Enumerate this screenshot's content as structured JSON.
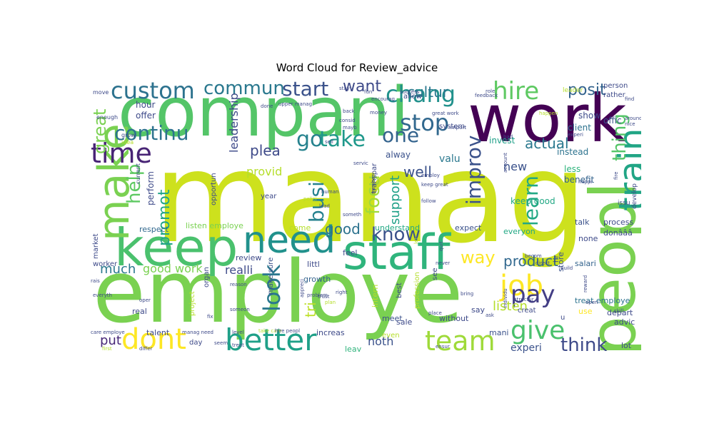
{
  "title": "Word Cloud for Review_advice",
  "words": [
    {
      "text": "manag",
      "color": "#cde11d"
    },
    {
      "text": "employe",
      "color": "#7ad151"
    },
    {
      "text": "compani",
      "color": "#54c568"
    },
    {
      "text": "work",
      "color": "#440154"
    },
    {
      "text": "peopl",
      "color": "#7ad151"
    },
    {
      "text": "keep",
      "color": "#4ac16d"
    },
    {
      "text": "staff",
      "color": "#2fb47c"
    },
    {
      "text": "need",
      "color": "#21918c"
    },
    {
      "text": "train",
      "color": "#21a585"
    },
    {
      "text": "better",
      "color": "#1fa088"
    },
    {
      "text": "dont",
      "color": "#fde725"
    },
    {
      "text": "team",
      "color": "#9fda3a"
    },
    {
      "text": "make",
      "color": "#7ad151"
    },
    {
      "text": "time",
      "color": "#482475"
    },
    {
      "text": "job",
      "color": "#fde725"
    },
    {
      "text": "give",
      "color": "#4ac16d"
    },
    {
      "text": "pay",
      "color": "#433e85"
    },
    {
      "text": "look",
      "color": "#2a788e"
    },
    {
      "text": "chang",
      "color": "#21918c"
    },
    {
      "text": "hire",
      "color": "#5ec962"
    },
    {
      "text": "custom",
      "color": "#2c728e"
    },
    {
      "text": "stop",
      "color": "#31688e"
    },
    {
      "text": "go",
      "color": "#26828e"
    },
    {
      "text": "take",
      "color": "#1f988b"
    },
    {
      "text": "one",
      "color": "#33638d"
    },
    {
      "text": "continu",
      "color": "#2c728e"
    },
    {
      "text": "commun",
      "color": "#2a788e"
    },
    {
      "text": "start",
      "color": "#3b528b"
    },
    {
      "text": "improv",
      "color": "#3b528b"
    },
    {
      "text": "focu",
      "color": "#a0da39"
    },
    {
      "text": "busi",
      "color": "#26828e"
    },
    {
      "text": "help",
      "color": "#5ec962"
    },
    {
      "text": "learn",
      "color": "#22a884"
    },
    {
      "text": "thing",
      "color": "#54c568"
    },
    {
      "text": "think",
      "color": "#3e4a89"
    },
    {
      "text": "way",
      "color": "#fde725"
    },
    {
      "text": "know",
      "color": "#3b528b"
    },
    {
      "text": "great",
      "color": "#7ad151"
    },
    {
      "text": "posit",
      "color": "#33638d"
    },
    {
      "text": "want",
      "color": "#3e4a89"
    },
    {
      "text": "cultur",
      "color": "#2a788e"
    },
    {
      "text": "actual",
      "color": "#2a788e"
    },
    {
      "text": "well",
      "color": "#3b528b"
    },
    {
      "text": "product",
      "color": "#31688e"
    },
    {
      "text": "promot",
      "color": "#20a486"
    },
    {
      "text": "plea",
      "color": "#3e4a89"
    },
    {
      "text": "tri",
      "color": "#bddf26"
    },
    {
      "text": "good",
      "color": "#2c728e"
    },
    {
      "text": "support",
      "color": "#1fa088"
    },
    {
      "text": "much",
      "color": "#2a788e"
    },
    {
      "text": "good work",
      "color": "#7ad151"
    },
    {
      "text": "realli",
      "color": "#3e4a89"
    },
    {
      "text": "put",
      "color": "#482878"
    },
    {
      "text": "noth",
      "color": "#3b528b"
    },
    {
      "text": "experi",
      "color": "#3b528b"
    },
    {
      "text": "listen",
      "color": "#b5de2b"
    },
    {
      "text": "leadership",
      "color": "#3e4a89"
    },
    {
      "text": "provid",
      "color": "#b5de2b"
    },
    {
      "text": "valu",
      "color": "#2a788e"
    },
    {
      "text": "new",
      "color": "#3b528b"
    },
    {
      "text": "keep good",
      "color": "#22a884"
    },
    {
      "text": "instead",
      "color": "#2c728e"
    },
    {
      "text": "less",
      "color": "#2fb47c"
    },
    {
      "text": "benefit",
      "color": "#33638d"
    },
    {
      "text": "offic",
      "color": "#3b528b"
    },
    {
      "text": "client",
      "color": "#2c728e"
    },
    {
      "text": "show",
      "color": "#3e4a89"
    },
    {
      "text": "invest",
      "color": "#1fa088"
    },
    {
      "text": "alway",
      "color": "#3b528b"
    },
    {
      "text": "hour",
      "color": "#3e4a89"
    },
    {
      "text": "offer",
      "color": "#3e4a89"
    },
    {
      "text": "perform",
      "color": "#3e4a89"
    },
    {
      "text": "respect",
      "color": "#31688e"
    },
    {
      "text": "listen employe",
      "color": "#7ad151"
    },
    {
      "text": "come",
      "color": "#b5de2b"
    },
    {
      "text": "understand",
      "color": "#22a884"
    },
    {
      "text": "expect",
      "color": "#3b528b"
    },
    {
      "text": "everyon",
      "color": "#22a884"
    },
    {
      "text": "talk",
      "color": "#3b528b"
    },
    {
      "text": "process",
      "color": "#3e4a89"
    },
    {
      "text": "donâââ",
      "color": "#3e4a89"
    },
    {
      "text": "none",
      "color": "#3e4a89"
    },
    {
      "text": "salari",
      "color": "#33638d"
    },
    {
      "text": "store",
      "color": "#3b528b"
    },
    {
      "text": "treat employe",
      "color": "#2c728e"
    },
    {
      "text": "use",
      "color": "#fde725"
    },
    {
      "text": "depart",
      "color": "#3e4a89"
    },
    {
      "text": "advic",
      "color": "#3e4a89"
    },
    {
      "text": "lot",
      "color": "#3e4a89"
    },
    {
      "text": "review",
      "color": "#3e4a89"
    },
    {
      "text": "feel",
      "color": "#3e4a89"
    },
    {
      "text": "littl",
      "color": "#3e4a89"
    },
    {
      "text": "growth",
      "color": "#33638d"
    },
    {
      "text": "make sure",
      "color": "#3b528b"
    },
    {
      "text": "intern",
      "color": "#b5de2b"
    },
    {
      "text": "meet",
      "color": "#3b528b"
    },
    {
      "text": "sale",
      "color": "#3e4a89"
    },
    {
      "text": "without",
      "color": "#3e4a89"
    },
    {
      "text": "say",
      "color": "#3e4a89"
    },
    {
      "text": "creat",
      "color": "#3e4a89"
    },
    {
      "text": "mani",
      "color": "#3b528b"
    },
    {
      "text": "increas",
      "color": "#3e4a89"
    },
    {
      "text": "leav",
      "color": "#2fb47c"
    },
    {
      "text": "talent",
      "color": "#3e4a89"
    },
    {
      "text": "real",
      "color": "#3e4a89"
    },
    {
      "text": "project",
      "color": "#b5de2b"
    },
    {
      "text": "organ",
      "color": "#3e4a89"
    },
    {
      "text": "opportun",
      "color": "#3e4a89"
    },
    {
      "text": "year",
      "color": "#3e4a89"
    },
    {
      "text": "market",
      "color": "#3e4a89"
    },
    {
      "text": "worker",
      "color": "#3e4a89"
    },
    {
      "text": "develop",
      "color": "#3e4a89"
    },
    {
      "text": "issu",
      "color": "#3e4a89"
    },
    {
      "text": "person",
      "color": "#3e4a89"
    },
    {
      "text": "rather",
      "color": "#3e4a89"
    },
    {
      "text": "leader",
      "color": "#b5de2b"
    },
    {
      "text": "transpar",
      "color": "#3e4a89"
    },
    {
      "text": "profession",
      "color": "#b5de2b"
    },
    {
      "text": "day",
      "color": "#3e4a89"
    },
    {
      "text": "even",
      "color": "#b5de2b"
    },
    {
      "text": "best",
      "color": "#3e4a89"
    },
    {
      "text": "u",
      "color": "#3e4a89"
    },
    {
      "text": "hr",
      "color": "#3e4a89"
    },
    {
      "text": "system",
      "color": "#3e4a89"
    },
    {
      "text": "allow",
      "color": "#3e4a89"
    },
    {
      "text": "see",
      "color": "#3e4a89"
    },
    {
      "text": "move",
      "color": "#3e4a89"
    },
    {
      "text": "enough",
      "color": "#3e4a89"
    },
    {
      "text": "grow",
      "color": "#3e4a89"
    },
    {
      "text": "idea",
      "color": "#b5de2b"
    },
    {
      "text": "current",
      "color": "#3e4a89"
    },
    {
      "text": "done",
      "color": "#3e4a89"
    },
    {
      "text": "upper manag",
      "color": "#3e4a89"
    },
    {
      "text": "back",
      "color": "#3e4a89"
    },
    {
      "text": "consid",
      "color": "#3e4a89"
    },
    {
      "text": "mayb",
      "color": "#3e4a89"
    },
    {
      "text": "money",
      "color": "#3e4a89"
    },
    {
      "text": "encourag",
      "color": "#3e4a89"
    },
    {
      "text": "success",
      "color": "#3e4a89"
    },
    {
      "text": "fun",
      "color": "#3e4a89"
    },
    {
      "text": "stay",
      "color": "#3e4a89"
    },
    {
      "text": "feedback",
      "color": "#3e4a89"
    },
    {
      "text": "role",
      "color": "#3e4a89"
    },
    {
      "text": "great work",
      "color": "#3e4a89"
    },
    {
      "text": "bad",
      "color": "#3e4a89"
    },
    {
      "text": "import",
      "color": "#3e4a89"
    },
    {
      "text": "servic",
      "color": "#3e4a89"
    },
    {
      "text": "sell",
      "color": "#3e4a89"
    },
    {
      "text": "happen",
      "color": "#b5de2b"
    },
    {
      "text": "experi",
      "color": "#3e4a89"
    },
    {
      "text": "find",
      "color": "#3e4a89"
    },
    {
      "text": "around",
      "color": "#3e4a89"
    },
    {
      "text": "nice",
      "color": "#3e4a89"
    },
    {
      "text": "fire",
      "color": "#3e4a89"
    },
    {
      "text": "happi",
      "color": "#3e4a89"
    },
    {
      "text": "account",
      "color": "#3e4a89"
    },
    {
      "text": "number",
      "color": "#3e4a89"
    },
    {
      "text": "employ",
      "color": "#3e4a89"
    },
    {
      "text": "keep great",
      "color": "#3e4a89"
    },
    {
      "text": "follow",
      "color": "#3e4a89"
    },
    {
      "text": "human",
      "color": "#3e4a89"
    },
    {
      "text": "polici",
      "color": "#b5de2b"
    },
    {
      "text": "lead",
      "color": "#3e4a89"
    },
    {
      "text": "someth",
      "color": "#3e4a89"
    },
    {
      "text": "let",
      "color": "#b5de2b"
    },
    {
      "text": "quit",
      "color": "#3e4a89"
    },
    {
      "text": "never",
      "color": "#3e4a89"
    },
    {
      "text": "becom",
      "color": "#3e4a89"
    },
    {
      "text": "direct",
      "color": "#3e4a89"
    },
    {
      "text": "build",
      "color": "#3e4a89"
    },
    {
      "text": "reward",
      "color": "#3e4a89"
    },
    {
      "text": "open",
      "color": "#3e4a89"
    },
    {
      "text": "skill",
      "color": "#3e4a89"
    },
    {
      "text": "bring",
      "color": "#3e4a89"
    },
    {
      "text": "structur",
      "color": "#3e4a89"
    },
    {
      "text": "individu",
      "color": "#3e4a89"
    },
    {
      "text": "place",
      "color": "#3e4a89"
    },
    {
      "text": "ask",
      "color": "#3e4a89"
    },
    {
      "text": "trust",
      "color": "#3e4a89"
    },
    {
      "text": "right",
      "color": "#3e4a89"
    },
    {
      "text": "plan",
      "color": "#b5de2b"
    },
    {
      "text": "reason",
      "color": "#3e4a89"
    },
    {
      "text": "someon",
      "color": "#3e4a89"
    },
    {
      "text": "appreci",
      "color": "#3e4a89"
    },
    {
      "text": "rais",
      "color": "#3e4a89"
    },
    {
      "text": "everyth",
      "color": "#3e4a89"
    },
    {
      "text": "oper",
      "color": "#3e4a89"
    },
    {
      "text": "fix",
      "color": "#3e4a89"
    },
    {
      "text": "care employe",
      "color": "#3e4a89"
    },
    {
      "text": "manag need",
      "color": "#3e4a89"
    },
    {
      "text": "level",
      "color": "#3e4a89"
    },
    {
      "text": "take care",
      "color": "#b5de2b"
    },
    {
      "text": "hire peopl",
      "color": "#3e4a89"
    },
    {
      "text": "seem",
      "color": "#3e4a89"
    },
    {
      "text": "first",
      "color": "#b5de2b"
    },
    {
      "text": "differ",
      "color": "#3e4a89"
    },
    {
      "text": "treat",
      "color": "#3e4a89"
    },
    {
      "text": "problem",
      "color": "#3e4a89"
    },
    {
      "text": "ensur",
      "color": "#3e4a89"
    }
  ]
}
